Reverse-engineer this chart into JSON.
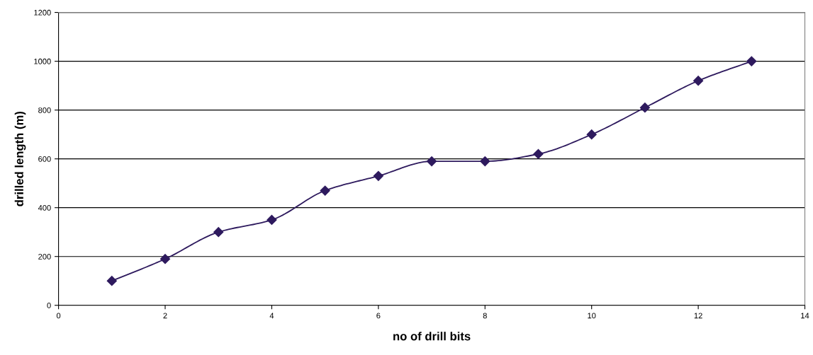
{
  "chart_data": {
    "type": "line",
    "xlabel": "no of drill bits",
    "ylabel": "drilled length (m)",
    "x": [
      1,
      2,
      3,
      4,
      5,
      6,
      7,
      8,
      9,
      10,
      11,
      12,
      13
    ],
    "series": [
      {
        "color": "#2e1a5e",
        "values": [
          100,
          190,
          300,
          350,
          470,
          530,
          590,
          590,
          620,
          700,
          810,
          920,
          1000
        ]
      }
    ],
    "xlim": [
      0,
      14
    ],
    "xticks": [
      0,
      2,
      4,
      6,
      8,
      10,
      12,
      14
    ],
    "ylim": [
      0,
      1200
    ],
    "yticks": [
      0,
      200,
      400,
      600,
      800,
      1000,
      1200
    ],
    "grid": "y",
    "marker": "diamond",
    "line_style": "solid",
    "legend": false
  }
}
